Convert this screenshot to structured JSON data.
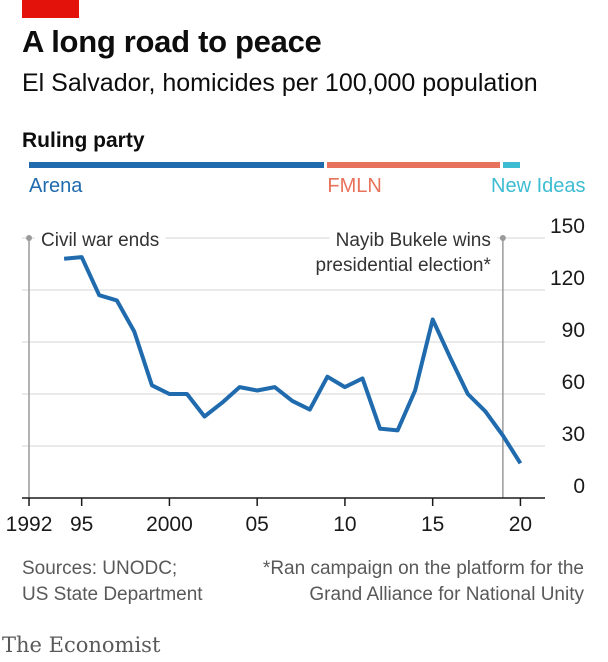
{
  "header": {
    "title": "A long road to peace",
    "subtitle": "El Salvador, homicides per 100,000 population"
  },
  "ruling_party": {
    "label": "Ruling party",
    "parties": [
      {
        "name": "Arena",
        "from": 1992,
        "to": 2009,
        "color": "#1f6bae"
      },
      {
        "name": "FMLN",
        "from": 2009,
        "to": 2019,
        "color": "#e8735c"
      },
      {
        "name": "New Ideas",
        "from": 2019,
        "to": 2020,
        "color": "#3ebcd2"
      }
    ]
  },
  "chart_data": {
    "type": "line",
    "title": "A long road to peace",
    "ylabel": "homicides per 100,000 population",
    "xlim": [
      1991.6,
      2021.4
    ],
    "ylim": [
      0,
      150
    ],
    "x_ticks": [
      {
        "value": 1992,
        "label": "1992"
      },
      {
        "value": 1995,
        "label": "95"
      },
      {
        "value": 2000,
        "label": "2000"
      },
      {
        "value": 2005,
        "label": "05"
      },
      {
        "value": 2010,
        "label": "10"
      },
      {
        "value": 2015,
        "label": "15"
      },
      {
        "value": 2020,
        "label": "20"
      }
    ],
    "y_ticks": [
      0,
      30,
      60,
      90,
      120,
      150
    ],
    "grid": true,
    "series": [
      {
        "color": "#1f6bae",
        "x": [
          1994,
          1995,
          1996,
          1997,
          1998,
          1999,
          2000,
          2001,
          2002,
          2003,
          2004,
          2005,
          2006,
          2007,
          2008,
          2009,
          2010,
          2011,
          2012,
          2013,
          2014,
          2015,
          2016,
          2017,
          2018,
          2019,
          2020
        ],
        "y": [
          138,
          139,
          117,
          114,
          96,
          65,
          60,
          60,
          47,
          55,
          64,
          62,
          64,
          56,
          51,
          70,
          64,
          69,
          40,
          39,
          62,
          103,
          81,
          60,
          50,
          36,
          20
        ]
      }
    ],
    "annotations": [
      {
        "x": 1992,
        "lines": [
          "Civil war ends"
        ]
      },
      {
        "x": 2019,
        "lines": [
          "Nayib Bukele wins",
          "presidential election*"
        ]
      }
    ]
  },
  "footer": {
    "sources": [
      "Sources: UNODC;",
      "US State Department"
    ],
    "note": [
      "*Ran campaign on the platform for the",
      "Grand Alliance for National Unity"
    ],
    "brand": "The Economist"
  }
}
